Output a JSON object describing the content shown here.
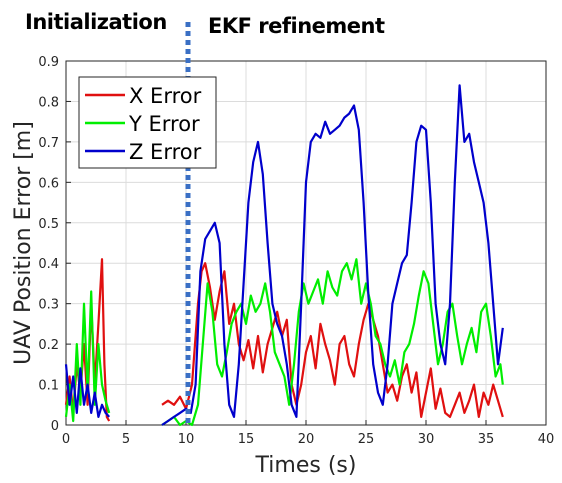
{
  "annotations": {
    "left": "Initialization",
    "right": "EKF refinement",
    "divider_x": 10
  },
  "chart_data": {
    "type": "line",
    "title": "",
    "xlabel": "Times (s)",
    "ylabel": "UAV Position Error [m]",
    "xlim": [
      0,
      40
    ],
    "ylim": [
      0,
      0.9
    ],
    "xticks": [
      "0",
      "5",
      "10",
      "15",
      "20",
      "25",
      "30",
      "35",
      "40"
    ],
    "yticks": [
      "0",
      "0.1",
      "0.2",
      "0.3",
      "0.4",
      "0.5",
      "0.6",
      "0.7",
      "0.8",
      "0.9"
    ],
    "grid": true,
    "legend_position": "top-left",
    "series": [
      {
        "name": "X Error",
        "color": "#e01010",
        "x": [
          0,
          0.3,
          0.6,
          0.9,
          1.2,
          1.5,
          1.8,
          2.1,
          2.4,
          2.7,
          3.0,
          3.2,
          3.4,
          3.6,
          8.0,
          8.5,
          9.0,
          9.5,
          10.0,
          10.5,
          11.0,
          11.3,
          11.6,
          12.0,
          12.4,
          12.8,
          13.2,
          13.6,
          14.0,
          14.4,
          14.8,
          15.2,
          15.6,
          16.0,
          16.4,
          16.8,
          17.2,
          17.6,
          18.0,
          18.4,
          18.8,
          19.2,
          19.6,
          20.0,
          20.4,
          20.8,
          21.2,
          21.6,
          22.0,
          22.4,
          22.8,
          23.2,
          23.6,
          24.0,
          24.4,
          24.8,
          25.2,
          25.6,
          26.0,
          26.4,
          26.8,
          27.2,
          27.6,
          28.0,
          28.4,
          28.8,
          29.2,
          29.6,
          30.0,
          30.4,
          30.8,
          31.2,
          31.6,
          32.0,
          32.4,
          32.8,
          33.2,
          33.6,
          34.0,
          34.4,
          34.8,
          35.2,
          35.6,
          36.0,
          36.4
        ],
        "values": [
          0.05,
          0.12,
          0.03,
          0.15,
          0.08,
          0.2,
          0.05,
          0.3,
          0.1,
          0.25,
          0.41,
          0.15,
          0.02,
          0.01,
          0.05,
          0.06,
          0.05,
          0.07,
          0.04,
          0.1,
          0.3,
          0.38,
          0.4,
          0.34,
          0.26,
          0.33,
          0.38,
          0.25,
          0.3,
          0.2,
          0.16,
          0.21,
          0.14,
          0.22,
          0.13,
          0.2,
          0.24,
          0.28,
          0.22,
          0.26,
          0.1,
          0.05,
          0.1,
          0.18,
          0.22,
          0.14,
          0.25,
          0.2,
          0.16,
          0.1,
          0.2,
          0.22,
          0.15,
          0.12,
          0.2,
          0.26,
          0.3,
          0.26,
          0.22,
          0.15,
          0.08,
          0.1,
          0.06,
          0.12,
          0.15,
          0.08,
          0.13,
          0.02,
          0.08,
          0.14,
          0.04,
          0.09,
          0.03,
          0.02,
          0.05,
          0.08,
          0.03,
          0.06,
          0.1,
          0.02,
          0.08,
          0.05,
          0.1,
          0.06,
          0.02
        ]
      },
      {
        "name": "Y Error",
        "color": "#00ee00",
        "x": [
          0,
          0.3,
          0.6,
          0.9,
          1.2,
          1.5,
          1.8,
          2.1,
          2.4,
          2.7,
          3.0,
          3.3,
          3.6,
          8.0,
          8.5,
          9.0,
          9.5,
          10.0,
          10.5,
          11.0,
          11.4,
          11.8,
          12.2,
          12.6,
          13.0,
          13.4,
          13.8,
          14.2,
          14.6,
          15.0,
          15.4,
          15.8,
          16.2,
          16.6,
          17.0,
          17.4,
          17.8,
          18.2,
          18.6,
          19.0,
          19.4,
          19.8,
          20.2,
          20.6,
          21.0,
          21.4,
          21.8,
          22.2,
          22.6,
          23.0,
          23.4,
          23.8,
          24.2,
          24.6,
          25.0,
          25.4,
          25.8,
          26.2,
          26.6,
          27.0,
          27.4,
          27.8,
          28.2,
          28.6,
          29.0,
          29.4,
          29.8,
          30.2,
          30.6,
          31.0,
          31.4,
          31.8,
          32.2,
          32.6,
          33.0,
          33.4,
          33.8,
          34.2,
          34.6,
          35.0,
          35.4,
          35.8,
          36.2,
          36.4
        ],
        "values": [
          0.02,
          0.1,
          0.01,
          0.2,
          0.05,
          0.3,
          0.08,
          0.33,
          0.05,
          0.2,
          0.1,
          0.06,
          0.03,
          0.0,
          0.01,
          0.02,
          0.0,
          0.01,
          0.0,
          0.05,
          0.2,
          0.35,
          0.28,
          0.15,
          0.12,
          0.18,
          0.25,
          0.28,
          0.3,
          0.25,
          0.32,
          0.28,
          0.3,
          0.35,
          0.28,
          0.18,
          0.15,
          0.12,
          0.05,
          0.15,
          0.28,
          0.35,
          0.3,
          0.33,
          0.36,
          0.3,
          0.38,
          0.34,
          0.32,
          0.38,
          0.4,
          0.36,
          0.41,
          0.3,
          0.35,
          0.3,
          0.22,
          0.2,
          0.15,
          0.12,
          0.16,
          0.1,
          0.18,
          0.2,
          0.25,
          0.32,
          0.38,
          0.35,
          0.25,
          0.15,
          0.2,
          0.28,
          0.3,
          0.22,
          0.15,
          0.2,
          0.24,
          0.18,
          0.28,
          0.3,
          0.22,
          0.12,
          0.15,
          0.1
        ]
      },
      {
        "name": "Z Error",
        "color": "#0000cc",
        "x": [
          0,
          0.3,
          0.6,
          0.9,
          1.2,
          1.5,
          1.8,
          2.1,
          2.4,
          2.7,
          3.0,
          3.3,
          3.6,
          8.0,
          8.5,
          9.0,
          9.5,
          10.0,
          10.4,
          10.8,
          11.2,
          11.6,
          12.0,
          12.4,
          12.8,
          13.2,
          13.6,
          14.0,
          14.4,
          14.8,
          15.2,
          15.6,
          16.0,
          16.4,
          16.8,
          17.2,
          17.6,
          18.0,
          18.4,
          18.8,
          19.2,
          19.6,
          20.0,
          20.4,
          20.8,
          21.2,
          21.6,
          22.0,
          22.4,
          22.8,
          23.2,
          23.6,
          24.0,
          24.4,
          24.8,
          25.2,
          25.6,
          26.0,
          26.4,
          26.8,
          27.2,
          27.6,
          28.0,
          28.4,
          28.8,
          29.2,
          29.6,
          30.0,
          30.4,
          30.8,
          31.2,
          31.6,
          32.0,
          32.4,
          32.8,
          33.2,
          33.6,
          34.0,
          34.4,
          34.8,
          35.2,
          35.6,
          36.0,
          36.4
        ],
        "values": [
          0.15,
          0.05,
          0.12,
          0.03,
          0.14,
          0.05,
          0.1,
          0.03,
          0.08,
          0.02,
          0.05,
          0.03,
          0.02,
          0.0,
          0.01,
          0.02,
          0.03,
          0.04,
          0.03,
          0.1,
          0.38,
          0.46,
          0.48,
          0.5,
          0.45,
          0.2,
          0.05,
          0.02,
          0.15,
          0.35,
          0.55,
          0.65,
          0.7,
          0.62,
          0.45,
          0.3,
          0.25,
          0.22,
          0.15,
          0.05,
          0.02,
          0.3,
          0.6,
          0.7,
          0.72,
          0.71,
          0.75,
          0.72,
          0.73,
          0.74,
          0.76,
          0.77,
          0.79,
          0.73,
          0.55,
          0.32,
          0.15,
          0.08,
          0.05,
          0.15,
          0.3,
          0.35,
          0.4,
          0.42,
          0.55,
          0.7,
          0.74,
          0.73,
          0.55,
          0.3,
          0.2,
          0.15,
          0.3,
          0.6,
          0.84,
          0.7,
          0.72,
          0.65,
          0.6,
          0.55,
          0.45,
          0.3,
          0.15,
          0.24
        ]
      }
    ]
  }
}
